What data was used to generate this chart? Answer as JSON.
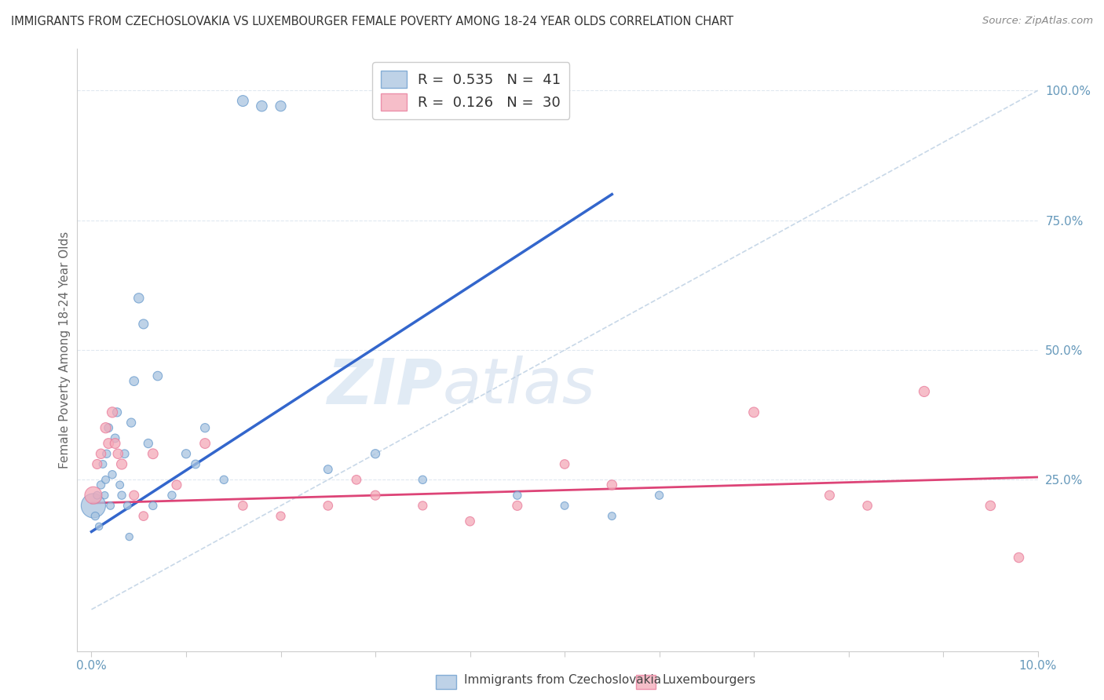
{
  "title": "IMMIGRANTS FROM CZECHOSLOVAKIA VS LUXEMBOURGER FEMALE POVERTY AMONG 18-24 YEAR OLDS CORRELATION CHART",
  "source": "Source: ZipAtlas.com",
  "ylabel": "Female Poverty Among 18-24 Year Olds",
  "xlim": [
    -0.15,
    10.0
  ],
  "ylim": [
    -8.0,
    108.0
  ],
  "ytick_labels_right": [
    "25.0%",
    "50.0%",
    "75.0%",
    "100.0%"
  ],
  "ytick_vals_right": [
    25,
    50,
    75,
    100
  ],
  "blue_R": 0.535,
  "blue_N": 41,
  "pink_R": 0.126,
  "pink_N": 30,
  "blue_color": "#A8C4E0",
  "pink_color": "#F4A8B8",
  "blue_edge": "#6699CC",
  "pink_edge": "#E87898",
  "trend_blue": "#3366CC",
  "trend_pink": "#DD4477",
  "ref_line_color": "#C8D8E8",
  "grid_color": "#E0E8F0",
  "background_color": "#FFFFFF",
  "title_color": "#333333",
  "source_color": "#888888",
  "axis_label_color": "#6699BB",
  "ylabel_color": "#666666",
  "legend_label_blue": "Immigrants from Czechoslovakia",
  "legend_label_pink": "Luxembourgers",
  "blue_scatter_x": [
    0.02,
    0.04,
    0.06,
    0.08,
    0.1,
    0.12,
    0.14,
    0.15,
    0.16,
    0.18,
    0.2,
    0.22,
    0.25,
    0.27,
    0.3,
    0.32,
    0.35,
    0.38,
    0.4,
    0.42,
    0.45,
    0.5,
    0.55,
    0.6,
    0.65,
    0.7,
    0.85,
    1.0,
    1.1,
    1.2,
    1.4,
    1.6,
    1.8,
    2.0,
    2.5,
    3.0,
    3.5,
    4.5,
    5.0,
    5.5,
    6.0
  ],
  "blue_scatter_y": [
    20,
    18,
    22,
    16,
    24,
    28,
    22,
    25,
    30,
    35,
    20,
    26,
    33,
    38,
    24,
    22,
    30,
    20,
    14,
    36,
    44,
    60,
    55,
    32,
    20,
    45,
    22,
    30,
    28,
    35,
    25,
    98,
    97,
    97,
    27,
    30,
    25,
    22,
    20,
    18,
    22
  ],
  "blue_scatter_size": [
    500,
    55,
    50,
    45,
    55,
    50,
    45,
    50,
    55,
    60,
    50,
    55,
    60,
    65,
    50,
    55,
    60,
    50,
    45,
    65,
    70,
    80,
    75,
    65,
    55,
    70,
    55,
    65,
    60,
    65,
    55,
    100,
    95,
    90,
    60,
    65,
    55,
    55,
    50,
    50,
    55
  ],
  "pink_scatter_x": [
    0.02,
    0.06,
    0.1,
    0.15,
    0.18,
    0.22,
    0.25,
    0.28,
    0.32,
    0.45,
    0.55,
    0.65,
    0.9,
    1.2,
    1.6,
    2.0,
    2.5,
    2.8,
    3.0,
    3.5,
    4.0,
    4.5,
    5.0,
    5.5,
    7.0,
    7.8,
    8.2,
    8.8,
    9.5,
    9.8
  ],
  "pink_scatter_y": [
    22,
    28,
    30,
    35,
    32,
    38,
    32,
    30,
    28,
    22,
    18,
    30,
    24,
    32,
    20,
    18,
    20,
    25,
    22,
    20,
    17,
    20,
    28,
    24,
    38,
    22,
    20,
    42,
    20,
    10
  ],
  "pink_scatter_size": [
    250,
    75,
    80,
    90,
    85,
    90,
    85,
    80,
    90,
    75,
    70,
    85,
    75,
    85,
    70,
    65,
    70,
    70,
    75,
    65,
    70,
    75,
    70,
    80,
    85,
    75,
    70,
    90,
    80,
    80
  ],
  "blue_trendline_x": [
    0.0,
    5.5
  ],
  "blue_trendline_y": [
    15.0,
    80.0
  ],
  "pink_trendline_x": [
    0.0,
    10.0
  ],
  "pink_trendline_y": [
    20.5,
    25.5
  ],
  "ref_line_x": [
    0.0,
    10.0
  ],
  "ref_line_y": [
    0.0,
    100.0
  ],
  "watermark_zip": "ZIP",
  "watermark_atlas": "atlas",
  "figsize": [
    14.06,
    8.92
  ],
  "dpi": 100
}
